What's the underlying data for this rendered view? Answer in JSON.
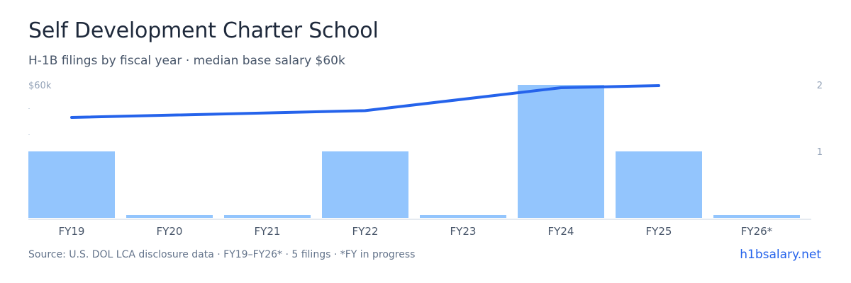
{
  "header": {
    "title": "Self Development Charter School",
    "subtitle": "H-1B filings by fiscal year · median base salary $60k"
  },
  "footer": {
    "source": "Source: U.S. DOL LCA disclosure data · FY19–FY26* · 5 filings · *FY in progress",
    "brand": "h1bsalary.net"
  },
  "colors": {
    "bar": "#93c5fd",
    "line": "#2563eb",
    "axis": "#cbd5e1",
    "tick_text": "#94a3b8",
    "label_text": "#475569"
  },
  "chart_data": {
    "type": "bar",
    "categories": [
      "FY19",
      "FY20",
      "FY21",
      "FY22",
      "FY23",
      "FY24",
      "FY25",
      "FY26*"
    ],
    "series": [
      {
        "values": [
          1,
          0,
          0,
          1,
          0,
          2,
          1,
          0
        ],
        "axis": "right"
      },
      {
        "values": [
          57.3,
          null,
          null,
          58.6,
          null,
          63.0,
          63.4,
          null
        ],
        "axis": "left",
        "type": "line"
      }
    ],
    "left_axis": {
      "top_label": "$60k"
    },
    "right_axis": {
      "ticks": [
        "1",
        "2"
      ],
      "ylim": [
        0,
        2
      ]
    }
  }
}
